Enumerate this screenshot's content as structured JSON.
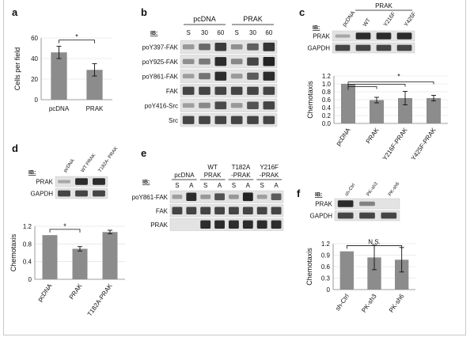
{
  "panels": {
    "a": {
      "letter": "a",
      "chart_data": {
        "type": "bar",
        "categories": [
          "pcDNA",
          "PRAK"
        ],
        "values": [
          46,
          29
        ],
        "errors": [
          6,
          6
        ],
        "ylabel": "Cells per field",
        "ylim": [
          0,
          60
        ],
        "yticks": [
          "0",
          "20",
          "40",
          "60"
        ],
        "significance": [
          {
            "from": 0,
            "to": 1,
            "label": "*"
          }
        ]
      }
    },
    "b": {
      "letter": "b",
      "ib_label": "IB:",
      "groups": [
        "pcDNA",
        "PRAK"
      ],
      "lanes": [
        "S",
        "30",
        "60",
        "S",
        "30",
        "60"
      ],
      "rows": [
        "poY397-FAK",
        "poY925-FAK",
        "poY861-FAK",
        "FAK",
        "poY416-Src",
        "Src"
      ],
      "intensity": [
        [
          0.15,
          0.45,
          0.75,
          0.2,
          0.5,
          0.8
        ],
        [
          0.2,
          0.35,
          0.85,
          0.25,
          0.7,
          0.9
        ],
        [
          0.1,
          0.4,
          0.85,
          0.15,
          0.55,
          0.85
        ],
        [
          0.7,
          0.7,
          0.7,
          0.7,
          0.7,
          0.7
        ],
        [
          0.1,
          0.25,
          0.65,
          0.15,
          0.6,
          0.7
        ],
        [
          0.7,
          0.7,
          0.7,
          0.7,
          0.7,
          0.7
        ]
      ]
    },
    "c": {
      "letter": "c",
      "ib_label": "IB:",
      "group_label": "PRAK",
      "lanes": [
        "pcDNA",
        "WT",
        "Y216F",
        "Y425F"
      ],
      "rows": [
        "PRAK",
        "GAPDH"
      ],
      "intensity": [
        [
          0.05,
          0.85,
          0.85,
          0.85
        ],
        [
          0.7,
          0.7,
          0.7,
          0.7
        ]
      ],
      "chart_data": {
        "type": "bar",
        "categories": [
          "pcDNA",
          "PRAK",
          "Y216F-PRAK",
          "Y425F-PRAK"
        ],
        "values": [
          1.0,
          0.59,
          0.64,
          0.64
        ],
        "errors": [
          0,
          0.07,
          0.17,
          0.07
        ],
        "ylabel": "Chemotaxis",
        "ylim": [
          0,
          1.2
        ],
        "yticks": [
          "0.0",
          "0.2",
          "0.4",
          "0.6",
          "0.8",
          "1.0",
          "1.2"
        ],
        "significance_label": "*"
      }
    },
    "d": {
      "letter": "d",
      "ib_label": "IB:",
      "lanes": [
        "pcDNA",
        "WT PRAK",
        "T182A- PRAK"
      ],
      "rows": [
        "PRAK",
        "GAPDH"
      ],
      "intensity": [
        [
          0.05,
          0.85,
          0.85
        ],
        [
          0.7,
          0.7,
          0.7
        ]
      ],
      "chart_data": {
        "type": "bar",
        "categories": [
          "pcDNA",
          "PRAK",
          "T182A-PRAK"
        ],
        "values": [
          1.0,
          0.69,
          1.07
        ],
        "errors": [
          0,
          0.05,
          0.04
        ],
        "ylabel": "Chemotaxis",
        "ylim": [
          0,
          1.2
        ],
        "yticks": [
          "0",
          "0.4",
          "0.8",
          "1.2"
        ],
        "significance": [
          {
            "from": 0,
            "to": 1,
            "label": "*"
          }
        ]
      }
    },
    "e": {
      "letter": "e",
      "ib_label": "IB:",
      "groups": [
        "pcDNA",
        "WT PRAK",
        "T182A -PRAK",
        "Y216F -PRAK"
      ],
      "lanes": [
        "S",
        "A",
        "S",
        "A",
        "S",
        "A",
        "S",
        "A"
      ],
      "rows": [
        "poY861-FAK",
        "FAK",
        "PRAK"
      ],
      "intensity": [
        [
          0.1,
          0.85,
          0.15,
          0.6,
          0.15,
          0.9,
          0.1,
          0.55
        ],
        [
          0.7,
          0.7,
          0.7,
          0.7,
          0.7,
          0.7,
          0.7,
          0.7
        ],
        [
          0.02,
          0.02,
          0.85,
          0.85,
          0.85,
          0.85,
          0.85,
          0.85
        ]
      ]
    },
    "f": {
      "letter": "f",
      "ib_label": "IB:",
      "lanes": [
        "sh-Ctrl",
        "PK-sh3",
        "PK-sh6"
      ],
      "rows": [
        "PRAK",
        "GAPDH"
      ],
      "intensity": [
        [
          0.85,
          0.3,
          0.02
        ],
        [
          0.7,
          0.7,
          0.7
        ]
      ],
      "chart_data": {
        "type": "bar",
        "categories": [
          "sh-Ctrl",
          "PK-sh3",
          "PK-sh6"
        ],
        "values": [
          1.0,
          0.84,
          0.78
        ],
        "errors": [
          0,
          0.32,
          0.32
        ],
        "ylabel": "Chemotaxis",
        "ylim": [
          0,
          1.2
        ],
        "yticks": [
          "0",
          "0.3",
          "0.6",
          "0.9",
          "1.2"
        ],
        "significance_label": "N.S."
      }
    }
  }
}
